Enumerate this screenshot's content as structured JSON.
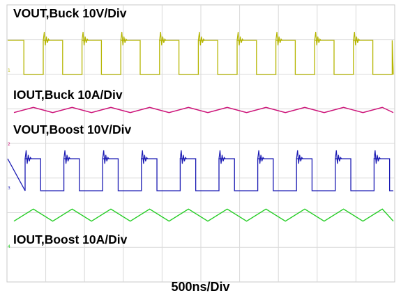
{
  "chart_data": {
    "type": "line",
    "title": "",
    "xlabel": "500ns/Div",
    "grid": true,
    "divisions": {
      "x": 10,
      "y": 8
    },
    "channel_markers": [
      "1",
      "2",
      "3",
      "4"
    ],
    "series": [
      {
        "name": "VOUT,Buck 10V/Div",
        "color": "#b5b500",
        "shape": "square",
        "scale": "10V/Div",
        "period_div": 1.0,
        "duty_high": 0.5,
        "amplitude_div": 1.95,
        "overshoot": "ringing spike at rising edge"
      },
      {
        "name": "IOUT,Buck 10A/Div",
        "color": "#cc1077",
        "shape": "triangle",
        "scale": "10A/Div",
        "period_div": 1.0,
        "ripple_div": 0.15
      },
      {
        "name": "VOUT,Boost 10V/Div",
        "color": "#1a1ab3",
        "shape": "square",
        "scale": "10V/Div",
        "period_div": 1.0,
        "duty_high": 0.4,
        "amplitude_div": 1.8,
        "overshoot": "ringing spike at rising edge"
      },
      {
        "name": "IOUT,Boost 10A/Div",
        "color": "#22cc22",
        "shape": "triangle",
        "scale": "10A/Div",
        "period_div": 1.0,
        "ripple_div": 0.35
      }
    ]
  }
}
